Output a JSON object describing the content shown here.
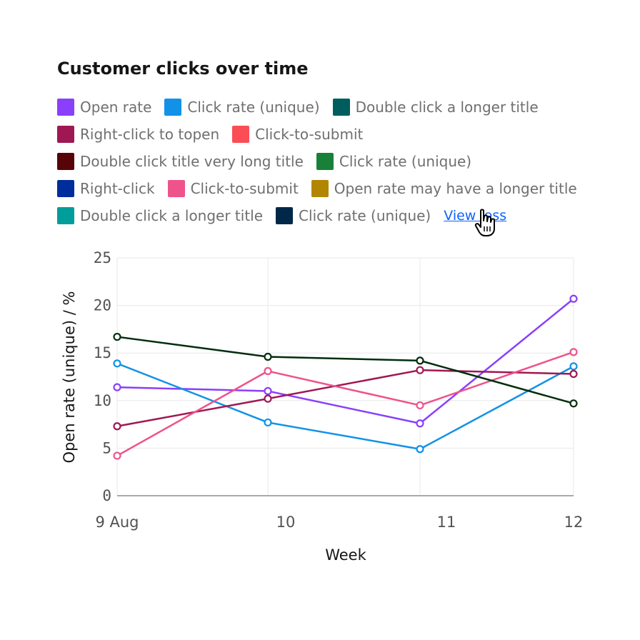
{
  "title": "Customer clicks over time",
  "legend": {
    "rows": [
      [
        {
          "label": "Open rate",
          "color": "#8a3ffc"
        },
        {
          "label": "Click rate (unique)",
          "color": "#1192e8"
        },
        {
          "label": "Double click a longer title",
          "color": "#005d5d"
        }
      ],
      [
        {
          "label": "Right-click to topen",
          "color": "#9f1853"
        },
        {
          "label": "Click-to-submit",
          "color": "#fa4d56"
        }
      ],
      [
        {
          "label": "Double click title very long title",
          "color": "#570408"
        },
        {
          "label": "Click rate (unique)",
          "color": "#198038"
        }
      ],
      [
        {
          "label": "Right-click",
          "color": "#002d9c"
        },
        {
          "label": "Click-to-submit",
          "color": "#ee538b"
        },
        {
          "label": "Open rate may have a longer title",
          "color": "#b28600"
        }
      ],
      [
        {
          "label": "Double click a longer title",
          "color": "#009d9a"
        },
        {
          "label": "Click rate (unique)",
          "color": "#012749"
        }
      ]
    ],
    "view_less": "View less"
  },
  "chart_data": {
    "type": "line",
    "xlabel": "Week",
    "ylabel": "Open rate (unique) / %",
    "ylim": [
      0,
      25
    ],
    "yticks": [
      "0",
      "5",
      "10",
      "15",
      "20",
      "25"
    ],
    "xticks": [
      "9 Aug",
      "10",
      "11",
      "12"
    ],
    "grid": true,
    "series": [
      {
        "name": "Open rate",
        "color": "#8a3ffc",
        "values": [
          11.4,
          11.0,
          7.6,
          20.7
        ]
      },
      {
        "name": "Click rate (unique)",
        "color": "#1192e8",
        "values": [
          13.9,
          7.7,
          4.9,
          13.6
        ]
      },
      {
        "name": "Right-click to topen",
        "color": "#9f1853",
        "values": [
          7.3,
          10.2,
          13.2,
          12.8
        ]
      },
      {
        "name": "Click-to-submit",
        "color": "#ee538b",
        "values": [
          4.2,
          13.1,
          9.5,
          15.1
        ]
      },
      {
        "name": "Click rate (unique)",
        "color": "#022d0d",
        "values": [
          16.7,
          14.6,
          14.2,
          9.7
        ]
      }
    ]
  }
}
